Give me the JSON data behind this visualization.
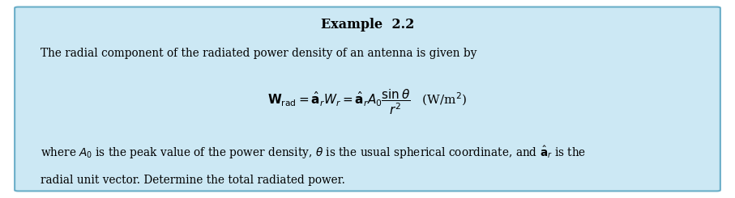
{
  "title": "Example  2.2",
  "line1": "The radial component of the radiated power density of an antenna is given by",
  "equation": "$\\mathbf{W}_{\\mathrm{rad}} = \\hat{\\mathbf{a}}_r W_r = \\hat{\\mathbf{a}}_r A_0 \\dfrac{\\sin\\theta}{r^2}$   (W/m$^2$)",
  "line3": "where $A_0$ is the peak value of the power density, $\\theta$ is the usual spherical coordinate, and $\\hat{\\mathbf{a}}_r$ is the",
  "line4": "radial unit vector. Determine the total radiated power.",
  "bg_color": "#cce8f4",
  "border_color": "#6aaec8",
  "outer_bg": "#ffffff",
  "text_color": "#000000",
  "title_color": "#000000",
  "fig_width": 9.07,
  "fig_height": 2.45,
  "dpi": 100
}
